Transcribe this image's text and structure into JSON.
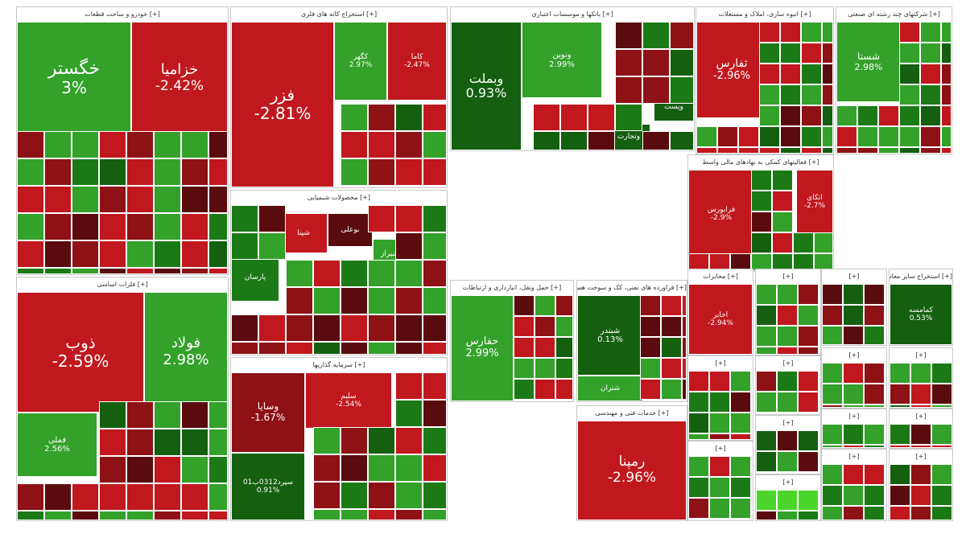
{
  "colors": {
    "up": "#33a12a",
    "upStrong": "#1c7a16",
    "upDeep": "#145f10",
    "upBright": "#4cd62b",
    "down": "#c0181e",
    "downStrong": "#8d1115",
    "downDeep": "#5a0b0e"
  },
  "chart_data": {
    "type": "treemap",
    "groups": [
      {
        "name": "خودرو و ساخت قطعات",
        "tiles": [
          {
            "symbol": "خگستر",
            "change": "3%"
          },
          {
            "symbol": "خزامیا",
            "change": "-2.42%"
          }
        ]
      },
      {
        "name": "استخراج کانه های فلزی",
        "tiles": [
          {
            "symbol": "فزر",
            "change": "-2.81%"
          },
          {
            "symbol": "کگهر",
            "change": "2.97%"
          },
          {
            "symbol": "کاما",
            "change": "-2.47%"
          }
        ]
      },
      {
        "name": "بانکها و موسسات اعتباری",
        "tiles": [
          {
            "symbol": "وبملت",
            "change": "0.93%"
          },
          {
            "symbol": "ونوین",
            "change": "2.99%"
          },
          {
            "symbol": "وتجارت",
            "change": ""
          },
          {
            "symbol": "وپست",
            "change": ""
          }
        ]
      },
      {
        "name": "انبوه سازی، املاک و مستغلات",
        "tiles": [
          {
            "symbol": "ثفارس",
            "change": "-2.96%"
          }
        ]
      },
      {
        "name": "شرکتهای چند رشته ای صنعتی",
        "tiles": [
          {
            "symbol": "شستا",
            "change": "2.98%"
          }
        ]
      },
      {
        "name": "محصولات شیمیایی",
        "tiles": [
          {
            "symbol": "شپنا",
            "change": ""
          },
          {
            "symbol": "پارسان",
            "change": ""
          },
          {
            "symbol": "بوعلی",
            "change": ""
          },
          {
            "symbol": "شیراز",
            "change": ""
          }
        ]
      },
      {
        "name": "فلزات اساسی",
        "tiles": [
          {
            "symbol": "ذوب",
            "change": "-2.59%"
          },
          {
            "symbol": "فولاد",
            "change": "2.98%"
          },
          {
            "symbol": "فملی",
            "change": "2.56%"
          }
        ]
      },
      {
        "name": "سرمایه گذاریها",
        "tiles": [
          {
            "symbol": "وسایا",
            "change": "-1.67%"
          },
          {
            "symbol": "سلیم",
            "change": "-2.54%"
          },
          {
            "symbol": "سپرد0312ب01",
            "change": "0.91%"
          }
        ]
      },
      {
        "name": "حمل ونقل، انبارداری و ارتباطات",
        "tiles": [
          {
            "symbol": "حفارس",
            "change": "2.99%"
          }
        ]
      },
      {
        "name": "فراورده های نفتی، کک و سوخت هسته ای",
        "tiles": [
          {
            "symbol": "شبندر",
            "change": "0.13%"
          },
          {
            "symbol": "شتران",
            "change": ""
          }
        ]
      },
      {
        "name": "خدمات فنی و مهندسی",
        "tiles": [
          {
            "symbol": "رمپنا",
            "change": "-2.96%"
          }
        ]
      },
      {
        "name": "فعالیتهای کمکی به نهادهای مالی واسط",
        "tiles": [
          {
            "symbol": "فرابورس",
            "change": "-2.9%"
          },
          {
            "symbol": "اتکای",
            "change": "-2.7%"
          }
        ]
      },
      {
        "name": "مخابرات",
        "tiles": [
          {
            "symbol": "اخابر",
            "change": "-2.94%"
          }
        ]
      },
      {
        "name": "استخراج سایر معادن",
        "tiles": [
          {
            "symbol": "کمامسه",
            "change": "0.53%"
          }
        ]
      }
    ]
  }
}
